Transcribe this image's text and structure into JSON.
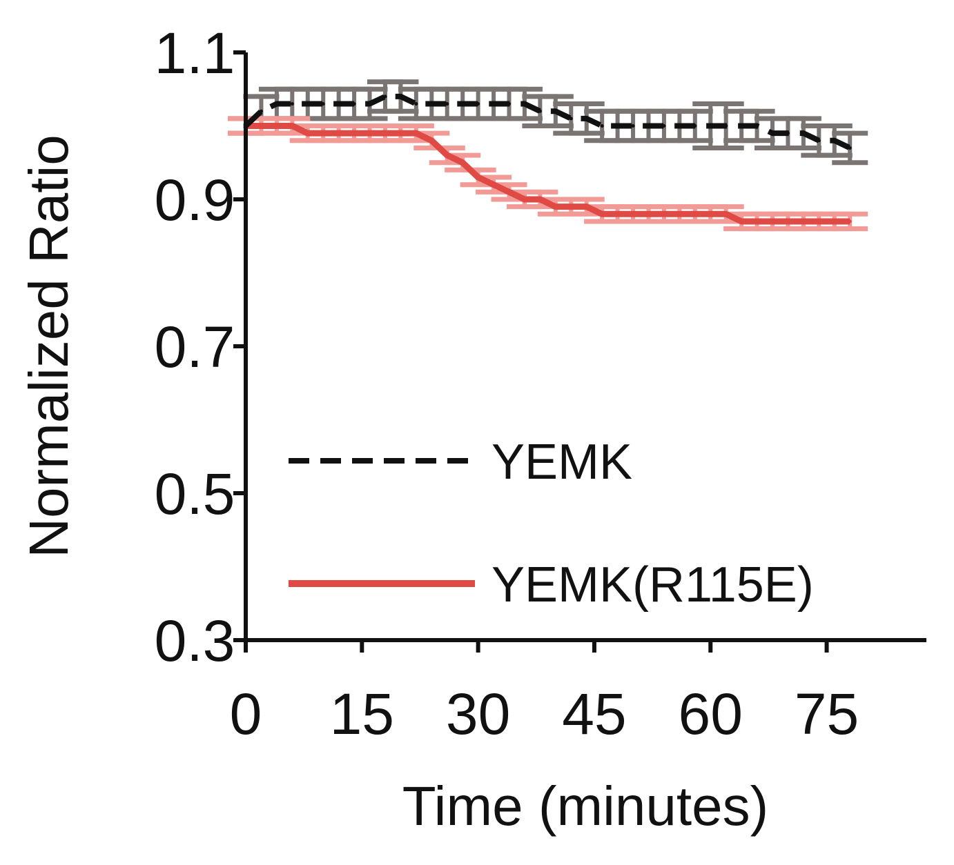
{
  "chart_data": {
    "type": "line",
    "xlabel": "Time (minutes)",
    "ylabel": "Normalized Ratio",
    "xlim": [
      0,
      86
    ],
    "ylim": [
      0.3,
      1.1
    ],
    "xticks": [
      "0",
      "15",
      "30",
      "45",
      "60",
      "75"
    ],
    "yticks": [
      "0.3",
      "0.5",
      "0.7",
      "0.9",
      "1.1"
    ],
    "grid": false,
    "legend_position": "bottom-left",
    "x": [
      0,
      2,
      4,
      6,
      8,
      10,
      12,
      14,
      16,
      18,
      20,
      22,
      24,
      26,
      28,
      30,
      32,
      34,
      36,
      38,
      40,
      42,
      44,
      46,
      48,
      50,
      52,
      54,
      56,
      58,
      60,
      62,
      64,
      66,
      68,
      70,
      72,
      74,
      76,
      78
    ],
    "series": [
      {
        "name": "YEMK",
        "color": "#111111",
        "error_color": "#7a7472",
        "dash": true,
        "values": [
          1.0,
          1.02,
          1.03,
          1.03,
          1.03,
          1.03,
          1.03,
          1.03,
          1.03,
          1.04,
          1.04,
          1.03,
          1.03,
          1.03,
          1.03,
          1.03,
          1.03,
          1.03,
          1.03,
          1.02,
          1.02,
          1.01,
          1.01,
          1.0,
          1.0,
          1.0,
          1.0,
          1.0,
          1.0,
          1.0,
          1.0,
          1.0,
          1.0,
          1.0,
          0.99,
          0.99,
          0.99,
          0.98,
          0.98,
          0.97
        ],
        "error": [
          0.01,
          0.02,
          0.02,
          0.02,
          0.02,
          0.02,
          0.02,
          0.02,
          0.02,
          0.02,
          0.02,
          0.02,
          0.02,
          0.02,
          0.02,
          0.02,
          0.02,
          0.02,
          0.02,
          0.02,
          0.02,
          0.02,
          0.02,
          0.02,
          0.02,
          0.02,
          0.02,
          0.02,
          0.02,
          0.02,
          0.03,
          0.03,
          0.02,
          0.02,
          0.02,
          0.02,
          0.02,
          0.02,
          0.02,
          0.02
        ]
      },
      {
        "name": "YEMK(R115E)",
        "color": "#e04a45",
        "error_color": "#f29a96",
        "dash": false,
        "values": [
          1.0,
          1.0,
          1.0,
          1.0,
          0.99,
          0.99,
          0.99,
          0.99,
          0.99,
          0.99,
          0.99,
          0.99,
          0.98,
          0.96,
          0.95,
          0.93,
          0.92,
          0.91,
          0.9,
          0.9,
          0.89,
          0.89,
          0.89,
          0.88,
          0.88,
          0.88,
          0.88,
          0.88,
          0.88,
          0.88,
          0.88,
          0.88,
          0.87,
          0.87,
          0.87,
          0.87,
          0.87,
          0.87,
          0.87,
          0.87
        ],
        "error": [
          0.01,
          0.01,
          0.01,
          0.01,
          0.01,
          0.01,
          0.01,
          0.01,
          0.01,
          0.01,
          0.01,
          0.01,
          0.01,
          0.01,
          0.01,
          0.01,
          0.01,
          0.01,
          0.01,
          0.01,
          0.01,
          0.01,
          0.01,
          0.01,
          0.01,
          0.01,
          0.01,
          0.01,
          0.01,
          0.01,
          0.01,
          0.01,
          0.01,
          0.01,
          0.01,
          0.01,
          0.01,
          0.01,
          0.01,
          0.01
        ]
      }
    ]
  }
}
